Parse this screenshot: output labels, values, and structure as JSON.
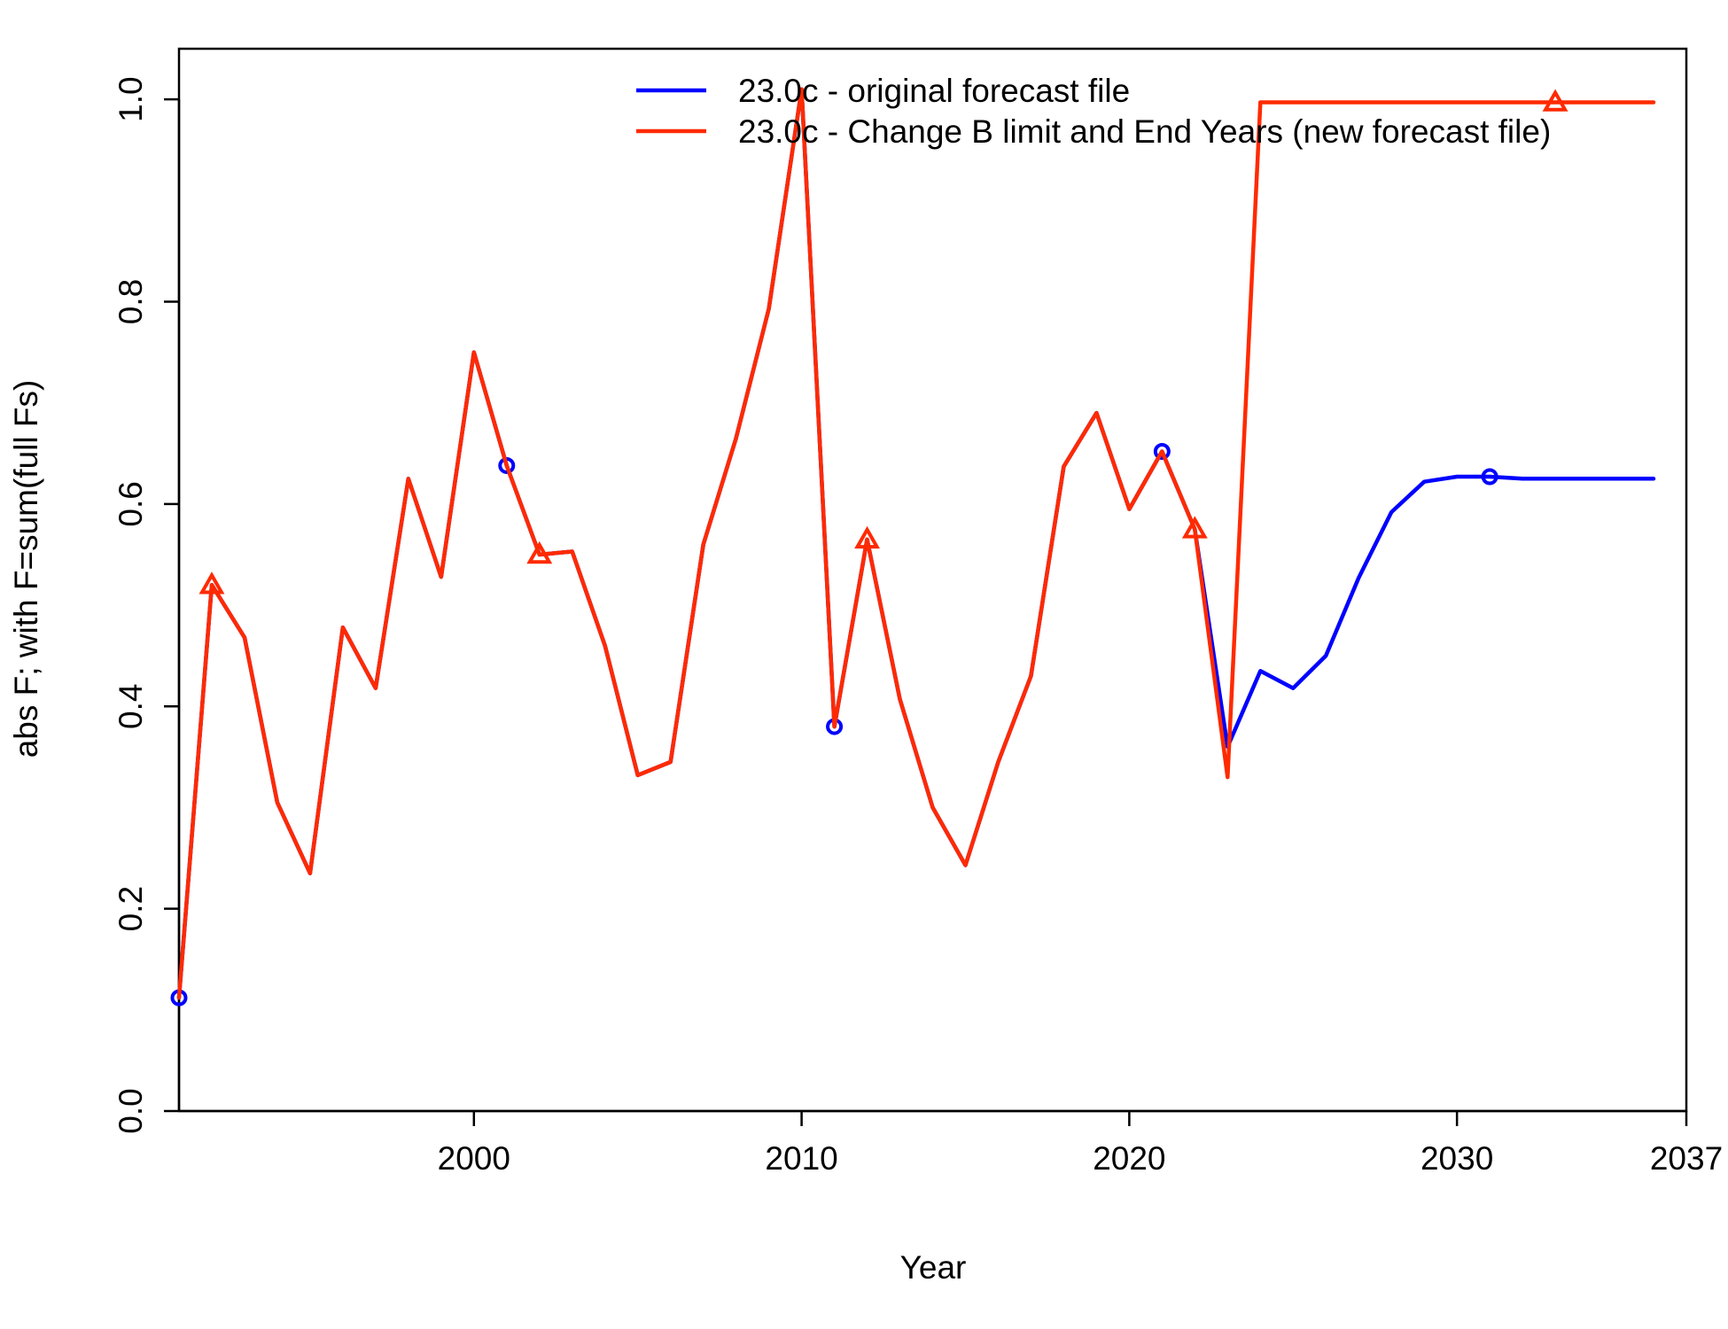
{
  "chart_data": {
    "type": "line",
    "title": "",
    "xlabel": "Year",
    "ylabel": "abs F; with F=sum(full Fs)",
    "xlim": [
      1991,
      2037
    ],
    "ylim": [
      0,
      1.05
    ],
    "x_ticks": [
      2000,
      2010,
      2020,
      2030,
      2037
    ],
    "y_ticks": [
      0.0,
      0.2,
      0.4,
      0.6,
      0.8,
      1.0
    ],
    "y_tick_labels": [
      "0.0",
      "0.2",
      "0.4",
      "0.6",
      "0.8",
      "1.0"
    ],
    "grid": false,
    "legend_position": "top-right",
    "series": [
      {
        "name": "23.0c - original forecast file",
        "color": "#0000ff",
        "marker": "circle",
        "marker_x": [
          1991,
          2001,
          2011,
          2021,
          2031
        ],
        "x": [
          1991,
          1992,
          1993,
          1994,
          1995,
          1996,
          1997,
          1998,
          1999,
          2000,
          2001,
          2002,
          2003,
          2004,
          2005,
          2006,
          2007,
          2008,
          2009,
          2010,
          2011,
          2012,
          2013,
          2014,
          2015,
          2016,
          2017,
          2018,
          2019,
          2020,
          2021,
          2022,
          2023,
          2024,
          2025,
          2026,
          2027,
          2028,
          2029,
          2030,
          2031,
          2032,
          2033,
          2034,
          2035,
          2036
        ],
        "y": [
          0.112,
          0.52,
          0.468,
          0.305,
          0.235,
          0.478,
          0.418,
          0.625,
          0.528,
          0.75,
          0.638,
          0.55,
          0.553,
          0.46,
          0.332,
          0.345,
          0.56,
          0.665,
          0.793,
          1.01,
          0.38,
          0.565,
          0.407,
          0.3,
          0.243,
          0.345,
          0.43,
          0.637,
          0.69,
          0.595,
          0.652,
          0.575,
          0.36,
          0.435,
          0.418,
          0.45,
          0.527,
          0.592,
          0.622,
          0.627,
          0.627,
          0.625,
          0.625,
          0.625,
          0.625,
          0.625
        ]
      },
      {
        "name": "23.0c - Change B limit and End Years (new forecast file)",
        "color": "#ff2a00",
        "marker": "triangle",
        "marker_x": [
          1992,
          2002,
          2012,
          2022,
          2033
        ],
        "x": [
          1991,
          1992,
          1993,
          1994,
          1995,
          1996,
          1997,
          1998,
          1999,
          2000,
          2001,
          2002,
          2003,
          2004,
          2005,
          2006,
          2007,
          2008,
          2009,
          2010,
          2011,
          2012,
          2013,
          2014,
          2015,
          2016,
          2017,
          2018,
          2019,
          2020,
          2021,
          2022,
          2023,
          2024,
          2025,
          2026,
          2027,
          2028,
          2029,
          2030,
          2031,
          2032,
          2033,
          2034,
          2035,
          2036
        ],
        "y": [
          0.112,
          0.52,
          0.468,
          0.305,
          0.235,
          0.478,
          0.418,
          0.625,
          0.528,
          0.75,
          0.638,
          0.55,
          0.553,
          0.46,
          0.332,
          0.345,
          0.56,
          0.665,
          0.793,
          1.01,
          0.38,
          0.565,
          0.407,
          0.3,
          0.243,
          0.345,
          0.43,
          0.637,
          0.69,
          0.595,
          0.652,
          0.575,
          0.33,
          0.997,
          0.997,
          0.997,
          0.997,
          0.997,
          0.997,
          0.997,
          0.997,
          0.997,
          0.997,
          0.997,
          0.997,
          0.997
        ]
      }
    ]
  }
}
